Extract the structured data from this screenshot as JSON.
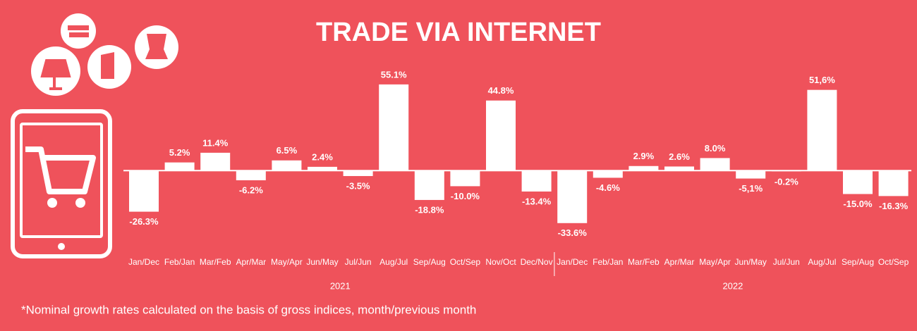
{
  "chart_data": {
    "type": "bar",
    "title": "TRADE VIA INTERNET",
    "groups": [
      {
        "name": "2021",
        "categories": [
          "Jan/Dec",
          "Feb/Jan",
          "Mar/Feb",
          "Apr/Mar",
          "May/Apr",
          "Jun/May",
          "Jul/Jun",
          "Aug/Jul",
          "Sep/Aug",
          "Oct/Sep",
          "Nov/Oct",
          "Dec/Nov"
        ],
        "values": [
          -26.3,
          5.2,
          11.4,
          -6.2,
          6.5,
          2.4,
          -3.5,
          55.1,
          -18.8,
          -10.0,
          44.8,
          -13.4
        ],
        "value_labels": [
          "-26.3%",
          "5.2%",
          "11.4%",
          "-6.2%",
          "6.5%",
          "2.4%",
          "-3.5%",
          "55.1%",
          "-18.8%",
          "-10.0%",
          "44.8%",
          "-13.4%"
        ]
      },
      {
        "name": "2022",
        "categories": [
          "Jan/Dec",
          "Feb/Jan",
          "Mar/Feb",
          "Apr/Mar",
          "May/Apr",
          "Jun/May",
          "Jul/Jun",
          "Aug/Jul",
          "Sep/Aug",
          "Oct/Sep"
        ],
        "values": [
          -33.6,
          -4.6,
          2.9,
          2.6,
          8.0,
          -5.1,
          -0.2,
          51.6,
          -15.0,
          -16.3
        ],
        "value_labels": [
          "-33.6%",
          "-4.6%",
          "2.9%",
          "2.6%",
          "8.0%",
          "-5,1%",
          "-0.2%",
          "51,6%",
          "-15.0%",
          "-16.3%"
        ]
      }
    ],
    "color": "#ffffff",
    "ylim": [
      -40,
      60
    ],
    "footnote": "*Nominal growth rates calculated on the basis of gross indices, month/previous month"
  }
}
